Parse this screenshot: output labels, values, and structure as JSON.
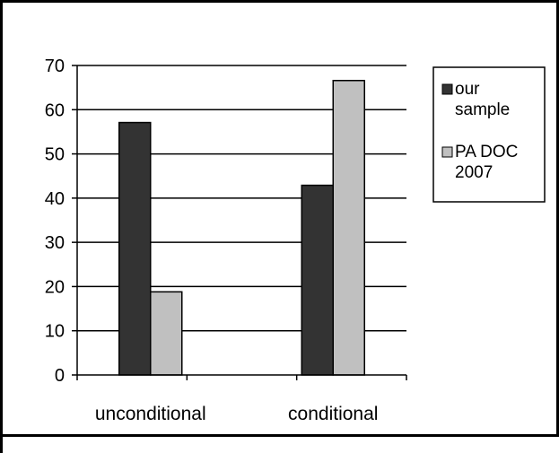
{
  "chart_data": {
    "type": "bar",
    "categories": [
      "unconditional",
      "conditional"
    ],
    "series": [
      {
        "name": "our sample",
        "values": [
          57.1,
          42.9
        ],
        "color": "#333333"
      },
      {
        "name": "PA DOC 2007",
        "values": [
          18.8,
          66.6
        ],
        "color": "#c0c0c0"
      }
    ],
    "ylim": [
      0,
      70
    ],
    "yticks": [
      0,
      10,
      20,
      30,
      40,
      50,
      60,
      70
    ],
    "grid": true,
    "legend_position": "right",
    "legend": {
      "entries": [
        {
          "lines": [
            "our",
            "sample"
          ]
        },
        {
          "lines": [
            "PA DOC",
            "2007"
          ]
        }
      ]
    }
  }
}
